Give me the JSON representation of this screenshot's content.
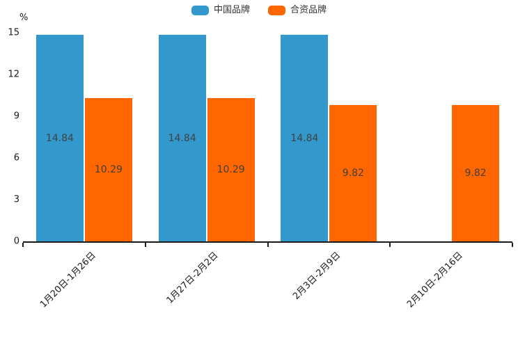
{
  "chart_data": {
    "type": "bar",
    "title": "",
    "categories": [
      "1月20日-1月26日",
      "1月27日-2月2日",
      "2月3日-2月9日",
      "2月10日-2月16日"
    ],
    "series": [
      {
        "name": "中国品牌",
        "color": "#3398cb",
        "values": [
          14.84,
          14.84,
          14.84,
          null
        ]
      },
      {
        "name": "合资品牌",
        "color": "#ff6600",
        "values": [
          10.29,
          10.29,
          9.82,
          9.82
        ]
      }
    ],
    "ylabel": "%",
    "ylim": [
      0,
      15
    ],
    "yticks": [
      0,
      3,
      6,
      9,
      12,
      15
    ],
    "grid": false,
    "legend_position": "top-center",
    "value_label_position": "inside-center",
    "value_label_color": "#404040",
    "axis_color": "#1a1a1a"
  }
}
